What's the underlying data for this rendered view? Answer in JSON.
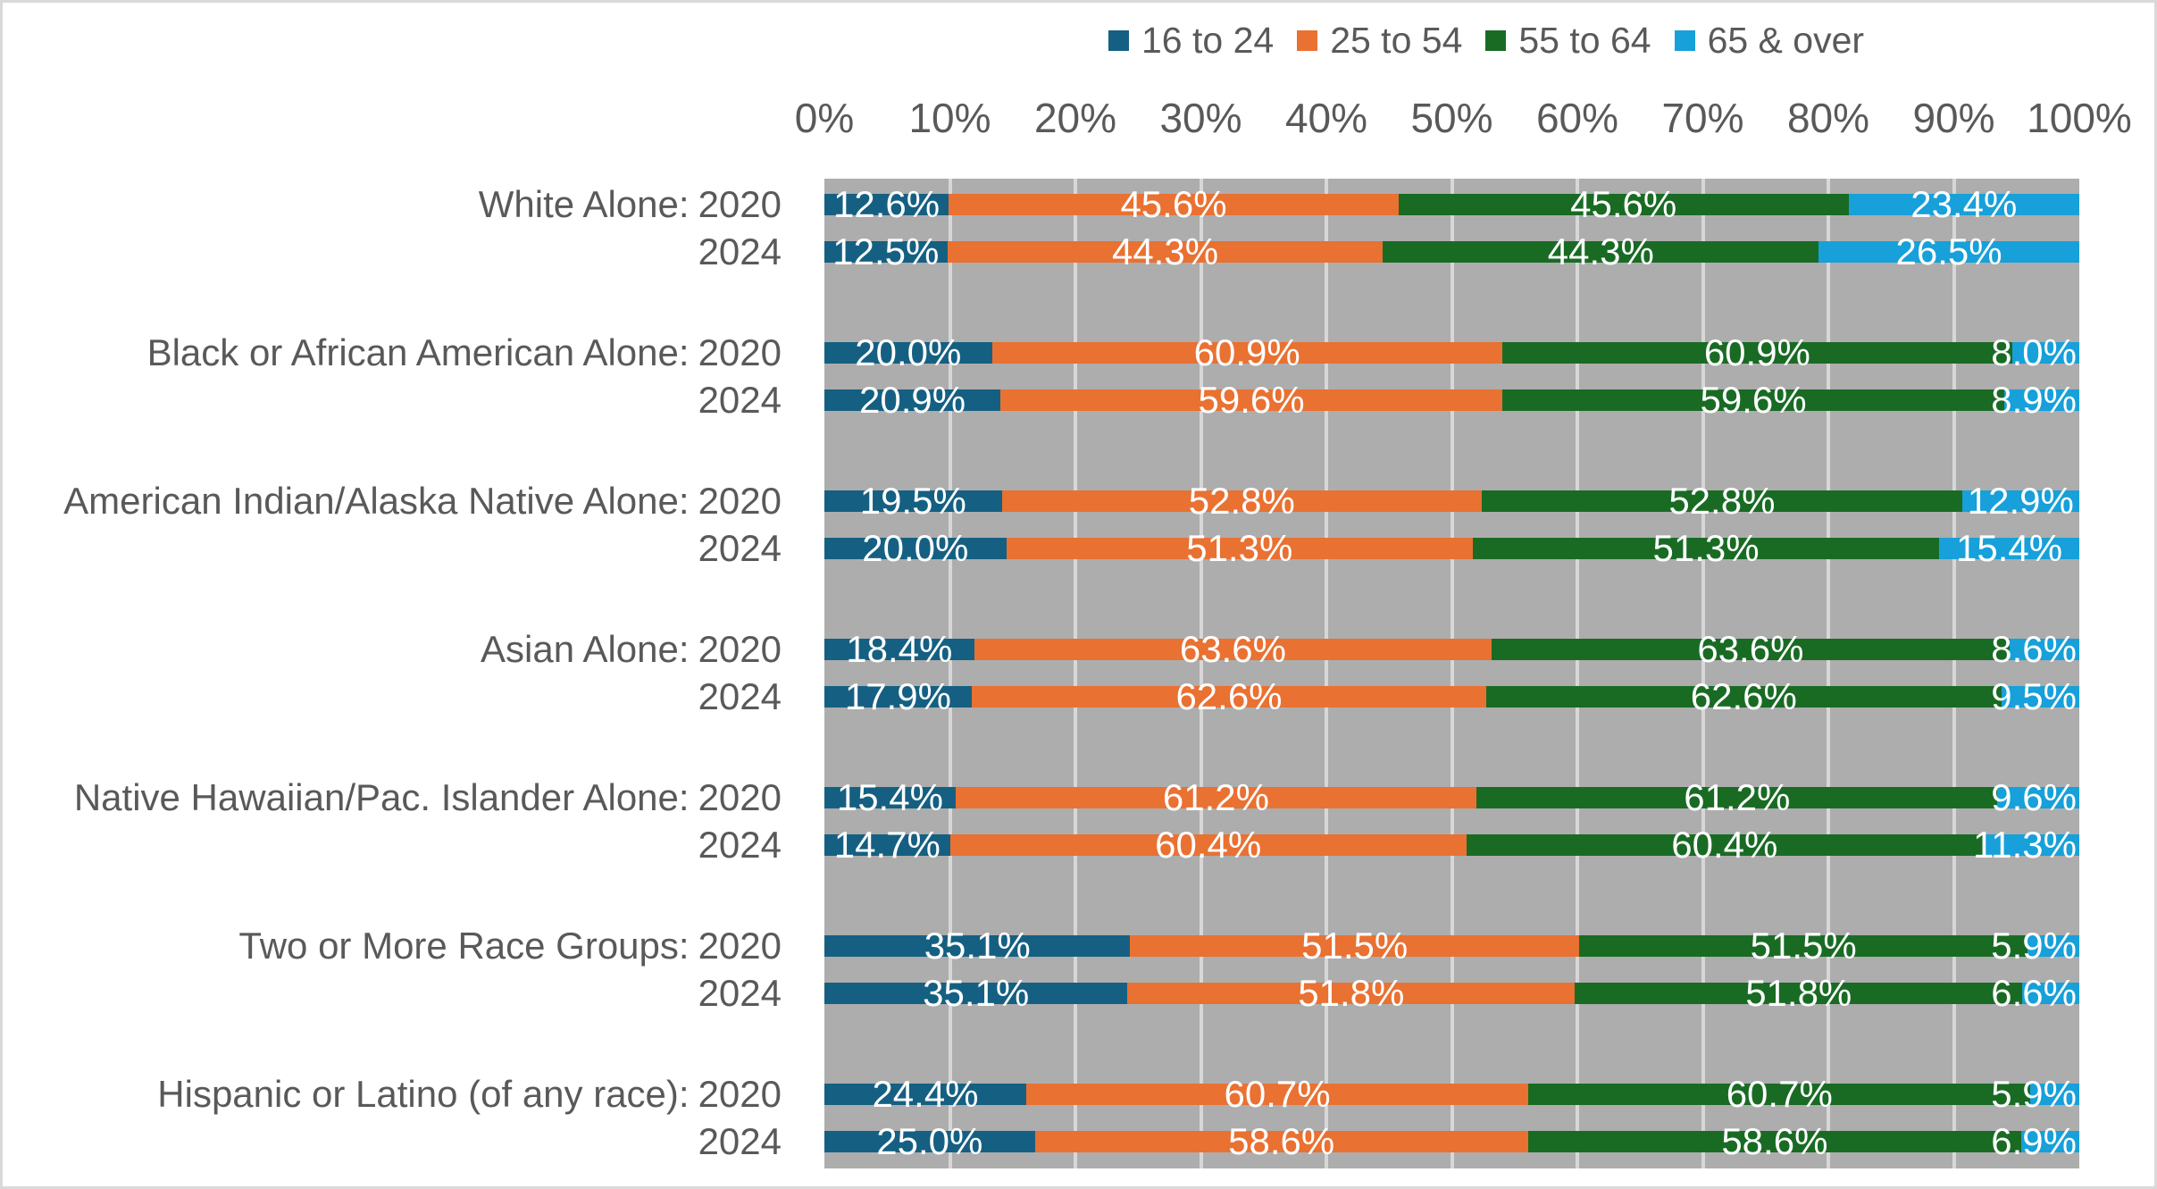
{
  "legend": {
    "items": [
      {
        "label": "16 to 24",
        "color": "#156082"
      },
      {
        "label": "25 to 54",
        "color": "#E97132"
      },
      {
        "label": "55 to 64",
        "color": "#196B24"
      },
      {
        "label": "65 & over",
        "color": "#17A0D9"
      }
    ]
  },
  "x_axis": {
    "ticks": [
      "0%",
      "10%",
      "20%",
      "30%",
      "40%",
      "50%",
      "60%",
      "70%",
      "80%",
      "90%",
      "100%"
    ]
  },
  "colors": {
    "plot_background": "#ADADAD",
    "gridline": "#D7D7D7",
    "text_gray": "#595959",
    "data_label": "#FFFFFF",
    "frame_border": "#D9D9D9"
  },
  "chart_data": {
    "type": "bar",
    "orientation": "horizontal",
    "stacking": "100%-normalized (segment width = value / sum of row values)",
    "legend_position": "top",
    "grid": "vertical light-gray lines every 10%",
    "x_ticks": [
      "0%",
      "10%",
      "20%",
      "30%",
      "40%",
      "50%",
      "60%",
      "70%",
      "80%",
      "90%",
      "100%"
    ],
    "xlim": [
      0,
      100
    ],
    "series_names": [
      "16 to 24",
      "25 to 54",
      "55 to 64",
      "65 & over"
    ],
    "series_colors": [
      "#156082",
      "#E97132",
      "#196B24",
      "#17A0D9"
    ],
    "note": "Data labels for '25 to 54' and '55 to 64' segments show identical values in the source chart.",
    "groups": [
      {
        "label": "White Alone:",
        "bars": [
          {
            "year": "2020",
            "values": [
              12.6,
              45.6,
              45.6,
              23.4
            ],
            "data_labels": [
              "12.6%",
              "45.6%",
              "45.6%",
              "23.4%"
            ]
          },
          {
            "year": "2024",
            "values": [
              12.5,
              44.3,
              44.3,
              26.5
            ],
            "data_labels": [
              "12.5%",
              "44.3%",
              "44.3%",
              "26.5%"
            ]
          }
        ]
      },
      {
        "label": "Black or African American Alone:",
        "bars": [
          {
            "year": "2020",
            "values": [
              20.0,
              60.9,
              60.9,
              8.0
            ],
            "data_labels": [
              "20.0%",
              "60.9%",
              "60.9%",
              "8.0%"
            ]
          },
          {
            "year": "2024",
            "values": [
              20.9,
              59.6,
              59.6,
              8.9
            ],
            "data_labels": [
              "20.9%",
              "59.6%",
              "59.6%",
              "8.9%"
            ]
          }
        ]
      },
      {
        "label": "American Indian/Alaska Native Alone:",
        "bars": [
          {
            "year": "2020",
            "values": [
              19.5,
              52.8,
              52.8,
              12.9
            ],
            "data_labels": [
              "19.5%",
              "52.8%",
              "52.8%",
              "12.9%"
            ]
          },
          {
            "year": "2024",
            "values": [
              20.0,
              51.3,
              51.3,
              15.4
            ],
            "data_labels": [
              "20.0%",
              "51.3%",
              "51.3%",
              "15.4%"
            ]
          }
        ]
      },
      {
        "label": "Asian Alone:",
        "bars": [
          {
            "year": "2020",
            "values": [
              18.4,
              63.6,
              63.6,
              8.6
            ],
            "data_labels": [
              "18.4%",
              "63.6%",
              "63.6%",
              "8.6%"
            ]
          },
          {
            "year": "2024",
            "values": [
              17.9,
              62.6,
              62.6,
              9.5
            ],
            "data_labels": [
              "17.9%",
              "62.6%",
              "62.6%",
              "9.5%"
            ]
          }
        ]
      },
      {
        "label": "Native Hawaiian/Pac. Islander Alone:",
        "bars": [
          {
            "year": "2020",
            "values": [
              15.4,
              61.2,
              61.2,
              9.6
            ],
            "data_labels": [
              "15.4%",
              "61.2%",
              "61.2%",
              "9.6%"
            ]
          },
          {
            "year": "2024",
            "values": [
              14.7,
              60.4,
              60.4,
              11.3
            ],
            "data_labels": [
              "14.7%",
              "60.4%",
              "60.4%",
              "11.3%"
            ]
          }
        ]
      },
      {
        "label": "Two or More Race Groups:",
        "bars": [
          {
            "year": "2020",
            "values": [
              35.1,
              51.5,
              51.5,
              5.9
            ],
            "data_labels": [
              "35.1%",
              "51.5%",
              "51.5%",
              "5.9%"
            ]
          },
          {
            "year": "2024",
            "values": [
              35.1,
              51.8,
              51.8,
              6.6
            ],
            "data_labels": [
              "35.1%",
              "51.8%",
              "51.8%",
              "6.6%"
            ]
          }
        ]
      },
      {
        "label": "Hispanic or Latino (of any race):",
        "bars": [
          {
            "year": "2020",
            "values": [
              24.4,
              60.7,
              60.7,
              5.9
            ],
            "data_labels": [
              "24.4%",
              "60.7%",
              "60.7%",
              "5.9%"
            ]
          },
          {
            "year": "2024",
            "values": [
              25.0,
              58.6,
              58.6,
              6.9
            ],
            "data_labels": [
              "25.0%",
              "58.6%",
              "58.6%",
              "6.9%"
            ]
          }
        ]
      }
    ]
  }
}
